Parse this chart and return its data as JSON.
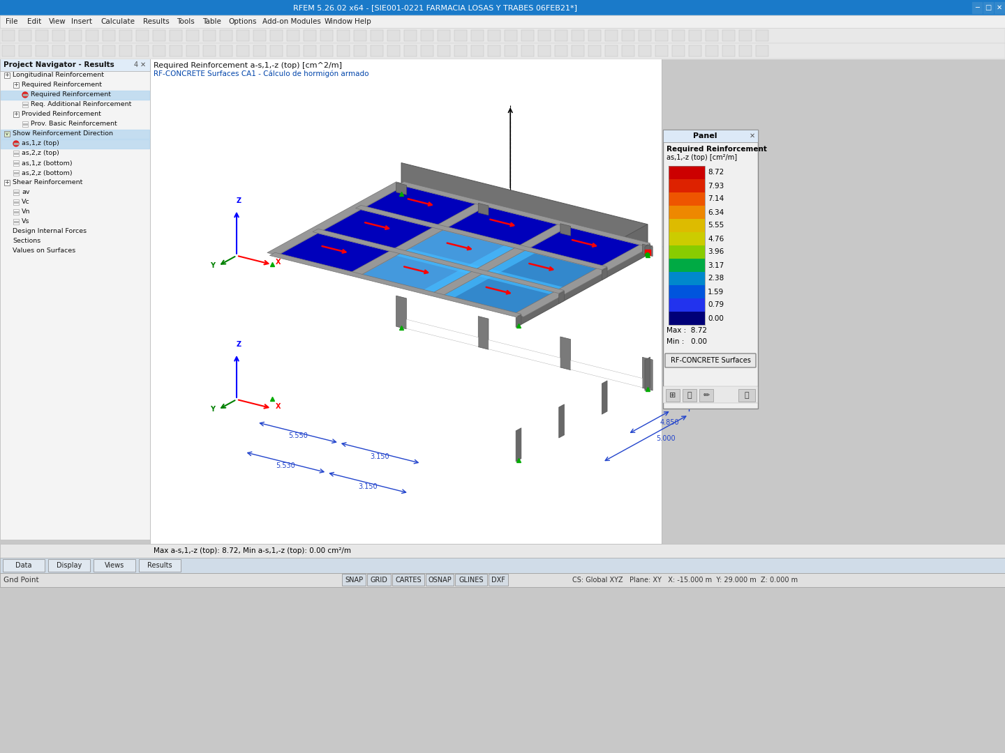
{
  "title_bar": "RFEM 5.26.02 x64 - [SIE001-0221 FARMACIA LOSAS Y TRABES 06FEB21*]",
  "title_bar_color": "#1a7ac9",
  "menu_items": [
    "File",
    "Edit",
    "View",
    "Insert",
    "Calculate",
    "Results",
    "Tools",
    "Table",
    "Options",
    "Add-on Modules",
    "Window",
    "Help"
  ],
  "nav_title": "Project Navigator - Results",
  "panel_title": "Panel",
  "panel_subtitle": "Required Reinforcement",
  "panel_label": "as,1,-z (top) [cm²/m]",
  "colorbar_values": [
    8.72,
    7.93,
    7.14,
    6.34,
    5.55,
    4.76,
    3.96,
    3.17,
    2.38,
    1.59,
    0.79,
    0.0
  ],
  "colorbar_colors": [
    "#cc0000",
    "#dd2200",
    "#ee5500",
    "#ee8800",
    "#ddbb00",
    "#cccc00",
    "#88cc00",
    "#00aa44",
    "#0088cc",
    "#0055dd",
    "#2233ee",
    "#000077"
  ],
  "max_val": "8.72",
  "min_val": "0.00",
  "rf_concrete_btn": "RF-CONCRETE Surfaces",
  "header_text1": "Required Reinforcement a-s,1,-z (top) [cm^2/m]",
  "header_text2": "RF-CONCRETE Surfaces CA1 - Cálculo de hormigón armado",
  "status_text": "Max a-s,1,-z (top): 8.72, Min a-s,1,-z (top): 0.00 cm²/m",
  "bottom_tabs": [
    "SNAP",
    "GRID",
    "CARTES",
    "OSNAP",
    "GLINES",
    "DXF"
  ],
  "coord_text": "CS: Global XYZ   Plane: XY   X: -15.000 m  Y: 29.000 m  Z: 0.000 m",
  "gnd_point": "Gnd Point",
  "nav_items_data": [
    [
      0,
      "+",
      "Longitudinal Reinforcement",
      false
    ],
    [
      1,
      "+",
      "Required Reinforcement",
      false
    ],
    [
      2,
      "o",
      "Required Reinforcement",
      true
    ],
    [
      2,
      "-",
      "Req. Additional Reinforcement",
      false
    ],
    [
      1,
      "+",
      "Provided Reinforcement",
      false
    ],
    [
      2,
      "-",
      "Prov. Basic Reinforcement",
      false
    ],
    [
      0,
      "v",
      "Show Reinforcement Direction",
      true
    ],
    [
      1,
      "o",
      "as,1,z (top)",
      true
    ],
    [
      1,
      "-",
      "as,2,z (top)",
      false
    ],
    [
      1,
      "-",
      "as,1,z (bottom)",
      false
    ],
    [
      1,
      "-",
      "as,2,z (bottom)",
      false
    ],
    [
      0,
      "+",
      "Shear Reinforcement",
      false
    ],
    [
      1,
      "-",
      "av",
      false
    ],
    [
      1,
      "-",
      "Vc",
      false
    ],
    [
      1,
      "-",
      "Vn",
      false
    ],
    [
      1,
      "-",
      "Vs",
      false
    ],
    [
      0,
      "D",
      "Design Internal Forces",
      false
    ],
    [
      0,
      "S",
      "Sections",
      false
    ],
    [
      0,
      "V",
      "Values on Surfaces",
      false
    ]
  ]
}
